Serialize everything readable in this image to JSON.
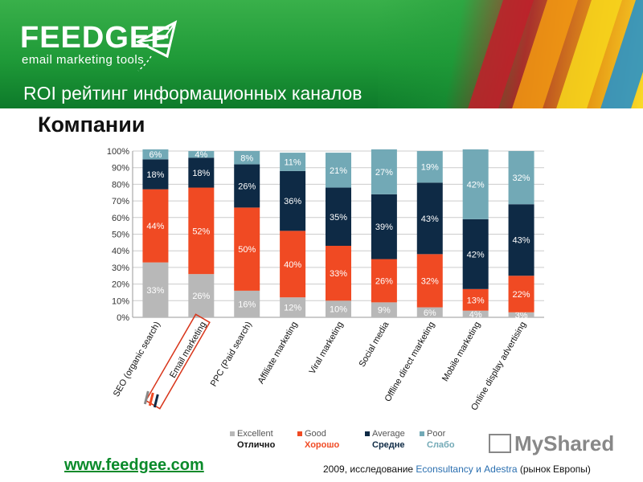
{
  "header": {
    "logo": "FEEDGEE",
    "logo_tagline": "email marketing tools",
    "title": "ROI рейтинг информационных каналов"
  },
  "subtitle": "Компании",
  "chart_data": {
    "type": "bar",
    "stacked": true,
    "orientation": "vertical",
    "categories": [
      "SEO (organic search)",
      "Email marketing",
      "PPC (Paid search)",
      "Affiliate marketing",
      "Viral marketing",
      "Social media",
      "Offline direct marketing",
      "Mobile marketing",
      "Online display advertising"
    ],
    "highlighted_category": "Email marketing",
    "series": [
      {
        "name": "Excellent",
        "name_ru": "Отлично",
        "color": "#b8b8b8",
        "values": [
          33,
          26,
          16,
          12,
          10,
          9,
          6,
          4,
          3
        ]
      },
      {
        "name": "Good",
        "name_ru": "Хорошо",
        "color": "#f04a23",
        "values": [
          44,
          52,
          50,
          40,
          33,
          26,
          32,
          13,
          22
        ]
      },
      {
        "name": "Average",
        "name_ru": "Средне",
        "color": "#0e2a45",
        "values": [
          18,
          18,
          26,
          36,
          35,
          39,
          43,
          42,
          43
        ]
      },
      {
        "name": "Poor",
        "name_ru": "Слабо",
        "color": "#72a9b6",
        "values": [
          6,
          4,
          8,
          11,
          21,
          27,
          19,
          42,
          32
        ]
      }
    ],
    "y_ticks": [
      "0%",
      "10%",
      "20%",
      "30%",
      "40%",
      "50%",
      "60%",
      "70%",
      "80%",
      "90%",
      "100%"
    ],
    "ylim": [
      0,
      100
    ],
    "grid": true,
    "legend_position": "bottom"
  },
  "footer": {
    "site": "www.feedgee.com",
    "source_pre": "2009, исследование ",
    "source_highlight": "Econsultancy и Adestra",
    "source_post": " (рынок Европы)",
    "watermark": "MyShared"
  }
}
